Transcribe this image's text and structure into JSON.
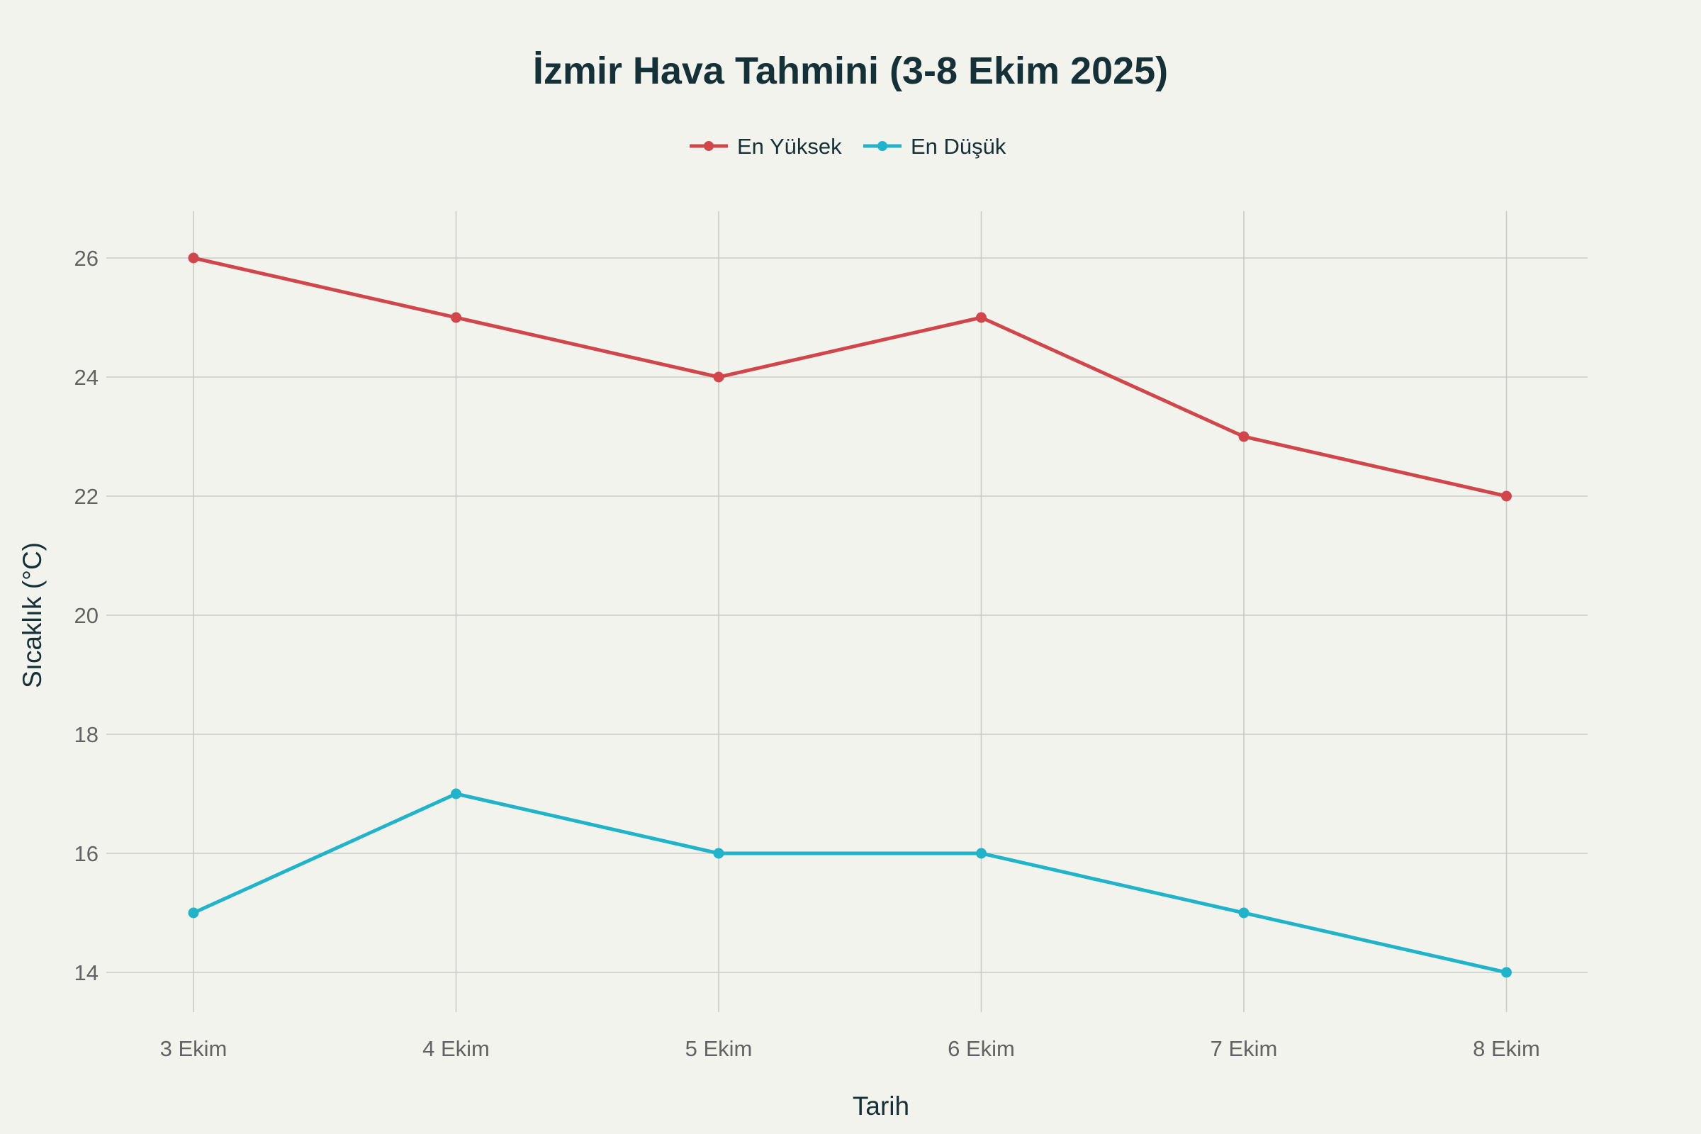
{
  "chart_data": {
    "type": "line",
    "title": "İzmir Hava Tahmini (3-8 Ekim 2025)",
    "xlabel": "Tarih",
    "ylabel": "Sıcaklık (°C)",
    "categories": [
      "3 Ekim",
      "4 Ekim",
      "5 Ekim",
      "6 Ekim",
      "7 Ekim",
      "8 Ekim"
    ],
    "yticks": [
      14,
      16,
      18,
      20,
      22,
      24,
      26
    ],
    "ylim": [
      13.2,
      26.8
    ],
    "grid": true,
    "legend_position": "top-center",
    "series": [
      {
        "name": "En Yüksek",
        "color": "#d1464b",
        "values": [
          26,
          25,
          24,
          25,
          23,
          22
        ]
      },
      {
        "name": "En Düşük",
        "color": "#20b3c9",
        "values": [
          15,
          17,
          16,
          16,
          15,
          14
        ]
      }
    ]
  }
}
